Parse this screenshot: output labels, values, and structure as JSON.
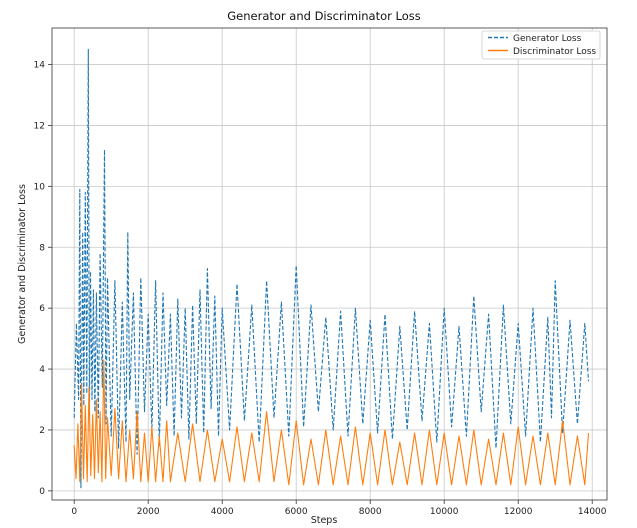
{
  "chart_data": {
    "type": "line",
    "title": "Generator and Discriminator Loss",
    "xlabel": "Steps",
    "ylabel": "Generator and Discriminator Loss",
    "xlim": [
      -600,
      14400
    ],
    "ylim": [
      -0.3,
      15.2
    ],
    "xticks": [
      0,
      2000,
      4000,
      6000,
      8000,
      10000,
      12000,
      14000
    ],
    "yticks": [
      0,
      2,
      4,
      6,
      8,
      10,
      12,
      14
    ],
    "grid": true,
    "legend_position": "top-right",
    "series": [
      {
        "name": "Generator Loss",
        "color": "#1f77b4",
        "linestyle": "dashed",
        "x": [
          0,
          60,
          120,
          150,
          180,
          230,
          260,
          300,
          340,
          380,
          410,
          440,
          480,
          520,
          560,
          600,
          650,
          700,
          760,
          820,
          860,
          900,
          1000,
          1100,
          1200,
          1300,
          1400,
          1450,
          1500,
          1600,
          1700,
          1800,
          1900,
          2000,
          2100,
          2200,
          2300,
          2400,
          2500,
          2600,
          2700,
          2800,
          2900,
          3000,
          3100,
          3200,
          3300,
          3400,
          3500,
          3600,
          3700,
          3800,
          3900,
          4000,
          4200,
          4400,
          4600,
          4800,
          5000,
          5200,
          5400,
          5600,
          5800,
          6000,
          6200,
          6400,
          6600,
          6800,
          7000,
          7200,
          7400,
          7600,
          7800,
          8000,
          8200,
          8400,
          8600,
          8800,
          9000,
          9200,
          9400,
          9600,
          9800,
          10000,
          10200,
          10400,
          10600,
          10800,
          11000,
          11200,
          11400,
          11600,
          11800,
          12000,
          12200,
          12400,
          12600,
          12800,
          12900,
          13000,
          13200,
          13400,
          13600,
          13800,
          13900
        ],
        "values": [
          2.4,
          5.5,
          3.0,
          9.9,
          0.1,
          8.5,
          2.8,
          9.8,
          3.2,
          14.5,
          2.5,
          7.2,
          3.0,
          6.6,
          2.6,
          6.5,
          2.4,
          7.8,
          3.4,
          11.2,
          2.2,
          7.0,
          1.8,
          6.9,
          1.4,
          6.2,
          1.6,
          8.5,
          3.0,
          6.5,
          1.2,
          7.0,
          2.6,
          5.8,
          2.0,
          6.9,
          1.5,
          6.5,
          2.8,
          5.8,
          1.8,
          6.3,
          2.4,
          6.0,
          1.7,
          6.1,
          2.2,
          6.6,
          1.9,
          7.3,
          2.7,
          6.4,
          1.8,
          6.0,
          2.0,
          6.8,
          2.3,
          6.1,
          1.6,
          6.9,
          2.4,
          6.2,
          1.8,
          7.4,
          2.1,
          6.1,
          2.6,
          5.7,
          2.0,
          5.9,
          1.8,
          6.0,
          2.2,
          5.6,
          1.9,
          5.8,
          1.7,
          5.4,
          2.0,
          5.9,
          2.3,
          5.5,
          1.6,
          6.0,
          2.1,
          5.4,
          1.8,
          6.4,
          2.6,
          5.8,
          1.4,
          6.1,
          2.2,
          5.5,
          1.8,
          6.0,
          1.6,
          5.7,
          2.4,
          6.9,
          1.9,
          5.6,
          2.2,
          5.5,
          3.6
        ]
      },
      {
        "name": "Discriminator Loss",
        "color": "#ff7f0e",
        "linestyle": "solid",
        "x": [
          0,
          50,
          100,
          150,
          200,
          250,
          300,
          350,
          400,
          450,
          500,
          550,
          600,
          650,
          700,
          750,
          800,
          850,
          900,
          1000,
          1100,
          1200,
          1300,
          1400,
          1500,
          1600,
          1700,
          1800,
          1900,
          2000,
          2100,
          2200,
          2300,
          2400,
          2500,
          2600,
          2800,
          3000,
          3200,
          3400,
          3600,
          3800,
          4000,
          4200,
          4400,
          4600,
          4800,
          5000,
          5200,
          5400,
          5600,
          5800,
          6000,
          6200,
          6400,
          6600,
          6800,
          7000,
          7200,
          7400,
          7600,
          7800,
          8000,
          8200,
          8400,
          8600,
          8800,
          9000,
          9200,
          9400,
          9600,
          9800,
          10000,
          10200,
          10400,
          10600,
          10800,
          11000,
          11200,
          11400,
          11600,
          11800,
          12000,
          12200,
          12400,
          12600,
          12800,
          13000,
          13200,
          13400,
          13600,
          13800,
          13900
        ],
        "values": [
          1.5,
          0.4,
          2.2,
          0.3,
          3.5,
          0.4,
          2.8,
          0.3,
          3.4,
          0.5,
          2.5,
          0.4,
          3.0,
          0.6,
          2.6,
          0.3,
          4.3,
          0.4,
          2.4,
          0.5,
          2.7,
          0.4,
          2.3,
          0.3,
          2.0,
          0.4,
          2.6,
          0.3,
          1.9,
          0.3,
          2.1,
          0.3,
          1.8,
          0.3,
          2.3,
          0.3,
          1.9,
          0.3,
          2.2,
          0.3,
          2.0,
          0.3,
          1.7,
          0.3,
          2.1,
          0.3,
          1.9,
          0.3,
          2.6,
          0.3,
          2.0,
          0.2,
          2.3,
          0.2,
          1.7,
          0.2,
          2.0,
          0.2,
          1.8,
          0.2,
          2.1,
          0.2,
          1.9,
          0.2,
          2.0,
          0.2,
          1.6,
          0.2,
          1.9,
          0.2,
          2.0,
          0.2,
          1.9,
          0.2,
          1.8,
          0.2,
          2.0,
          0.2,
          1.7,
          0.2,
          1.9,
          0.2,
          2.1,
          0.2,
          1.8,
          0.2,
          1.9,
          0.2,
          2.3,
          0.2,
          1.8,
          0.2,
          1.9
        ]
      }
    ]
  }
}
